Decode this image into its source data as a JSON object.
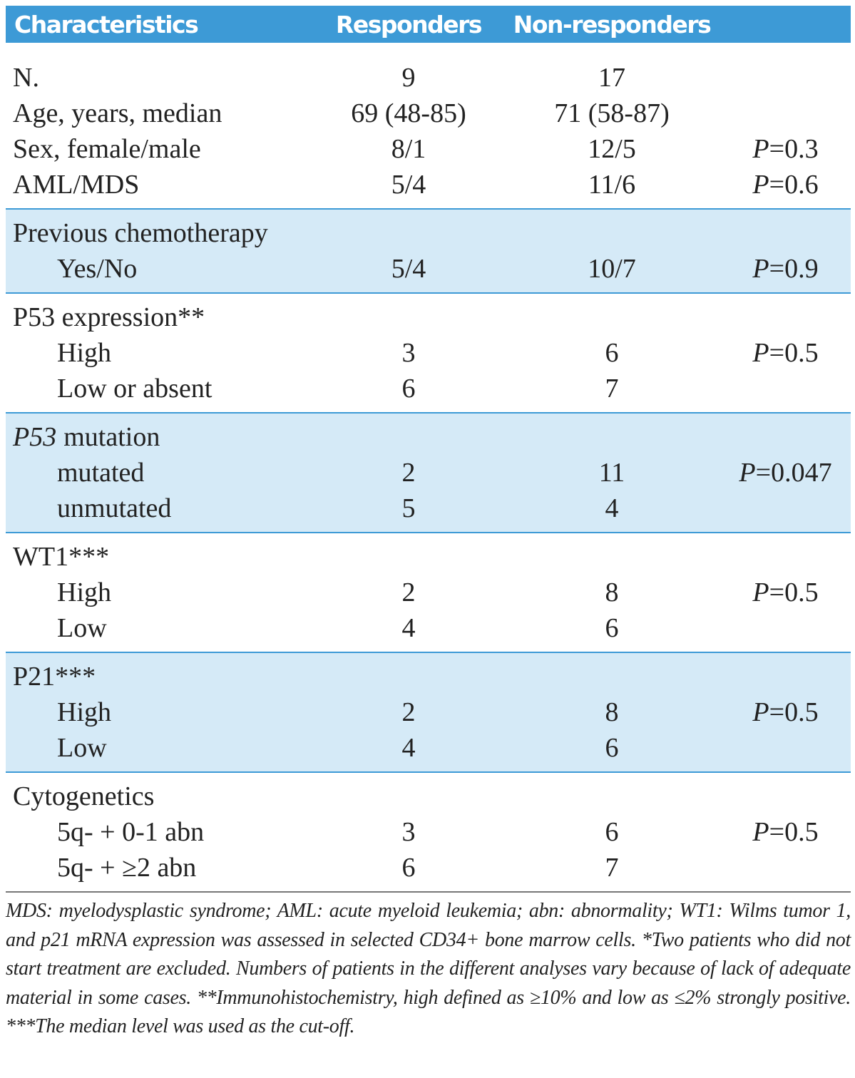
{
  "header": {
    "columns": [
      "Characteristics",
      "Responders",
      "Non-responders"
    ]
  },
  "sections": [
    {
      "shaded": false,
      "rows": [
        {
          "label": "N.",
          "responders": 9,
          "non_responders": 17
        },
        {
          "label": "Age, years, median",
          "responders": "69 (48-85)",
          "non_responders": "71 (58-87)"
        },
        {
          "label": "Sex, female/male",
          "responders": "8/1",
          "non_responders": "12/5",
          "p": "P=0.3"
        },
        {
          "label": "AML/MDS",
          "responders": "5/4",
          "non_responders": "11/6",
          "p": "P=0.6"
        }
      ]
    },
    {
      "shaded": true,
      "rows": [
        {
          "label": "Previous chemotherapy"
        },
        {
          "label": "Yes/No",
          "indent": true,
          "responders": "5/4",
          "non_responders": "10/7",
          "p": "P=0.9"
        }
      ]
    },
    {
      "shaded": false,
      "rows": [
        {
          "label": "P53 expression**"
        },
        {
          "label": "High",
          "indent": true,
          "responders": 3,
          "non_responders": 6,
          "p": "P=0.5"
        },
        {
          "label": "Low or absent",
          "indent": true,
          "responders": 6,
          "non_responders": 7
        }
      ]
    },
    {
      "shaded": true,
      "rows": [
        {
          "label_italic": "P53",
          "label": "mutation"
        },
        {
          "label": "mutated",
          "indent": true,
          "responders": 2,
          "non_responders": 11,
          "p": "P=0.047"
        },
        {
          "label": "unmutated",
          "indent": true,
          "responders": 5,
          "non_responders": 4
        }
      ]
    },
    {
      "shaded": false,
      "rows": [
        {
          "label": "WT1***"
        },
        {
          "label": "High",
          "indent": true,
          "responders": 2,
          "non_responders": 8,
          "p": "P=0.5"
        },
        {
          "label": "Low",
          "indent": true,
          "responders": 4,
          "non_responders": 6
        }
      ]
    },
    {
      "shaded": true,
      "rows": [
        {
          "label": "P21***"
        },
        {
          "label": "High",
          "indent": true,
          "responders": 2,
          "non_responders": 8,
          "p": "P=0.5"
        },
        {
          "label": "Low",
          "indent": true,
          "responders": 4,
          "non_responders": 6
        }
      ]
    },
    {
      "shaded": false,
      "rows": [
        {
          "label": "Cytogenetics"
        },
        {
          "label": "5q- + 0-1 abn",
          "indent": true,
          "responders": 3,
          "non_responders": 6,
          "p": "P=0.5"
        },
        {
          "label": "5q- + ≥2 abn",
          "indent": true,
          "responders": 6,
          "non_responders": 7
        }
      ]
    }
  ],
  "footnote": "MDS: myelodysplastic syndrome; AML: acute myeloid leukemia; abn: abnormality; WT1: Wilms tumor 1, and p21 mRNA expression was assessed in selected CD34+ bone marrow cells. *Two patients who did not start treatment are excluded. Numbers of patients in the different analyses vary because of lack of adequate material in some cases. **Immunohistochemistry, high defined as ≥10% and low as ≤2% strongly positive. ***The median level was used as the cut-off."
}
